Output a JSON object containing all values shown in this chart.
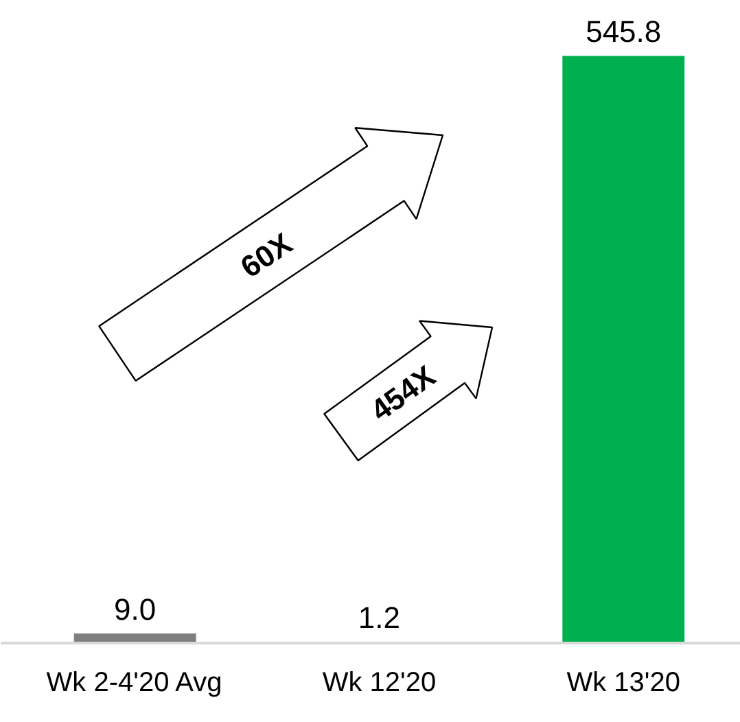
{
  "chart_data": {
    "type": "bar",
    "categories": [
      "Wk 2-4'20 Avg",
      "Wk 12'20",
      "Wk 13'20"
    ],
    "values": [
      9.0,
      1.2,
      545.8
    ],
    "colors": [
      "#7f7f7f",
      "#7f7f7f",
      "#00b050"
    ],
    "value_labels": [
      "9.0",
      "1.2",
      "545.8"
    ],
    "tick_labels": "x",
    "grid": false,
    "annotations": [
      "60X",
      "454X"
    ]
  }
}
